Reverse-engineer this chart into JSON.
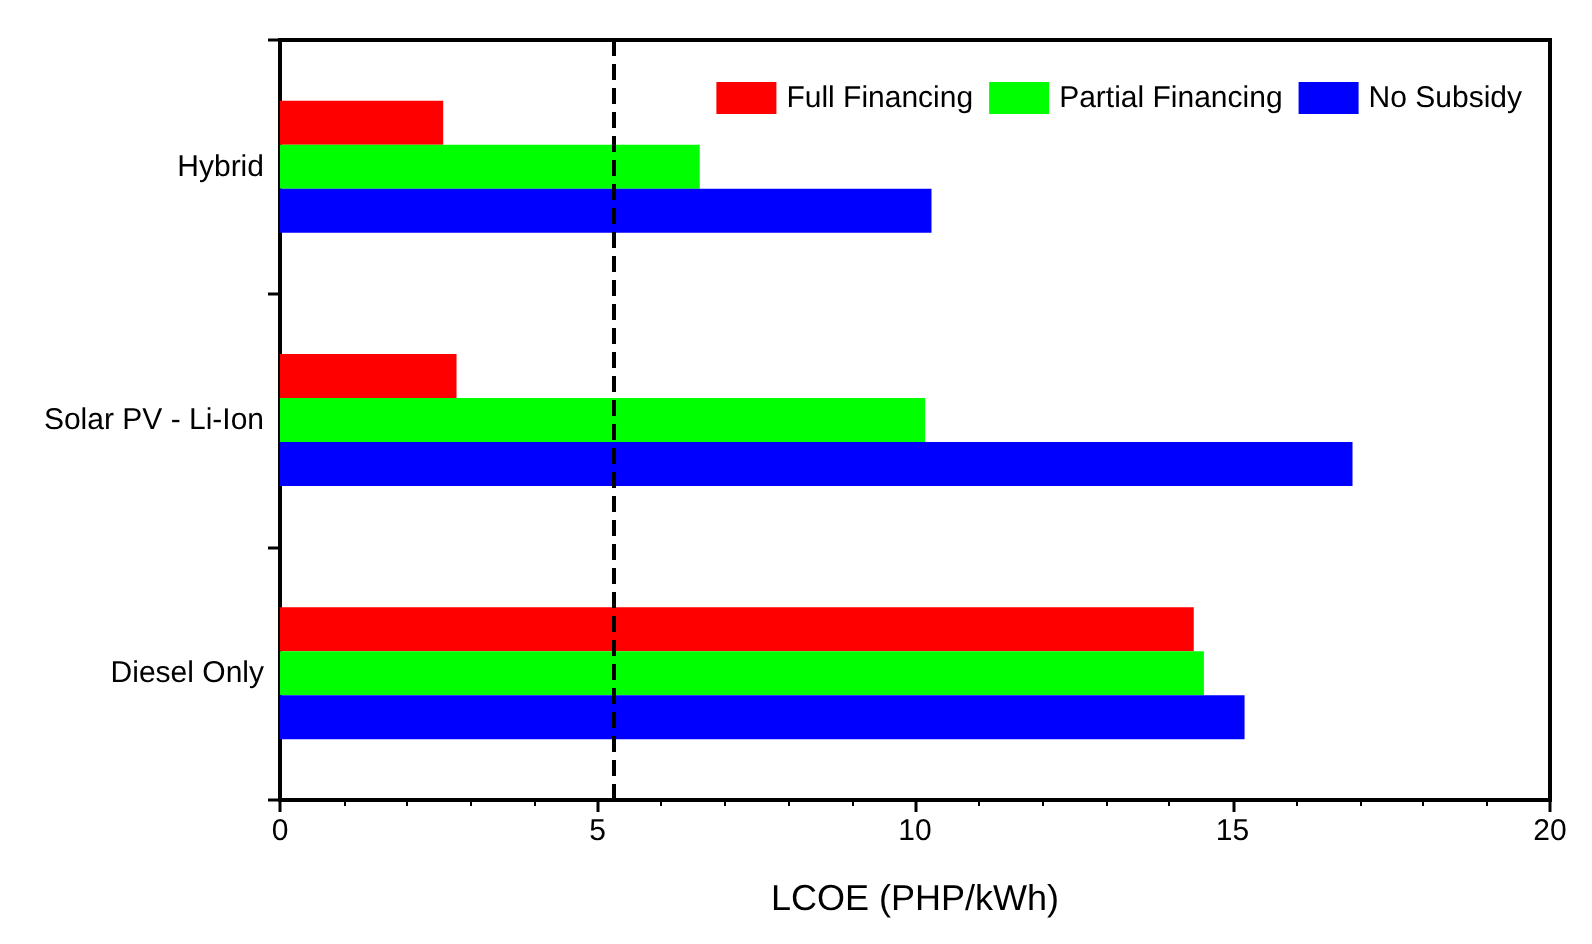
{
  "chart_data": {
    "type": "bar",
    "orientation": "horizontal",
    "xlabel": "LCOE (PHP/kWh)",
    "categories": [
      "Hybrid",
      "Solar PV - Li-Ion",
      "Diesel Only"
    ],
    "series": [
      {
        "name": "Full Financing",
        "color": "#ff0000",
        "values": [
          2.57,
          2.78,
          14.39
        ]
      },
      {
        "name": "Partial Financing",
        "color": "#00ff00",
        "values": [
          6.61,
          10.16,
          14.55
        ]
      },
      {
        "name": "No Subsidy",
        "color": "#0000ff",
        "values": [
          10.26,
          16.89,
          15.19
        ]
      }
    ],
    "xlim": [
      0,
      20
    ],
    "xticks": [
      0,
      5,
      10,
      15,
      20
    ],
    "grid": false,
    "legend": "top right",
    "ref_lines": [
      {
        "axis": "x",
        "value": 5.26,
        "line_style": "dashed",
        "color": "#000000"
      }
    ]
  }
}
